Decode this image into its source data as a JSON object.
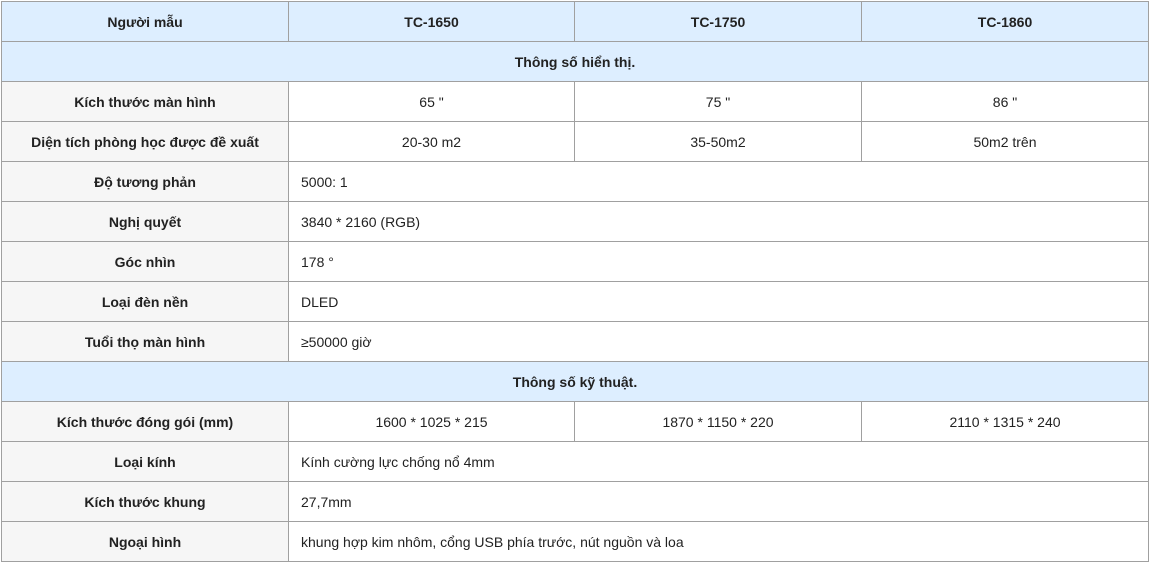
{
  "header": {
    "label": "Người mẫu",
    "models": [
      "TC-1650",
      "TC-1750",
      "TC-1860"
    ]
  },
  "sections": [
    {
      "title": "Thông số hiển thị.",
      "rows": [
        {
          "label": "Kích thước màn hình",
          "values": [
            "65 \"",
            "75 \"",
            "86 \""
          ]
        },
        {
          "label": "Diện tích phòng học được đề xuất",
          "values": [
            "20-30 m2",
            "35-50m2",
            "50m2 trên"
          ]
        },
        {
          "label": "Độ tương phản",
          "value": "5000: 1"
        },
        {
          "label": "Nghị quyết",
          "value": "3840 * 2160 (RGB)"
        },
        {
          "label": "Góc nhìn",
          "value": "178 °"
        },
        {
          "label": "Loại đèn nền",
          "value": "DLED"
        },
        {
          "label": "Tuổi thọ màn hình",
          "value": "≥50000 giờ"
        }
      ]
    },
    {
      "title": "Thông số kỹ thuật.",
      "rows": [
        {
          "label": "Kích thước đóng gói (mm)",
          "values": [
            "1600 * 1025 * 215",
            "1870 * 1150 * 220",
            "2110 * 1315 * 240"
          ]
        },
        {
          "label": "Loại kính",
          "value": "Kính cường lực chống nổ 4mm"
        },
        {
          "label": "Kích thước khung",
          "value": "27,7mm"
        },
        {
          "label": "Ngoại hình",
          "value": "khung hợp kim nhôm, cổng USB phía trước, nút nguồn và loa"
        }
      ]
    }
  ]
}
